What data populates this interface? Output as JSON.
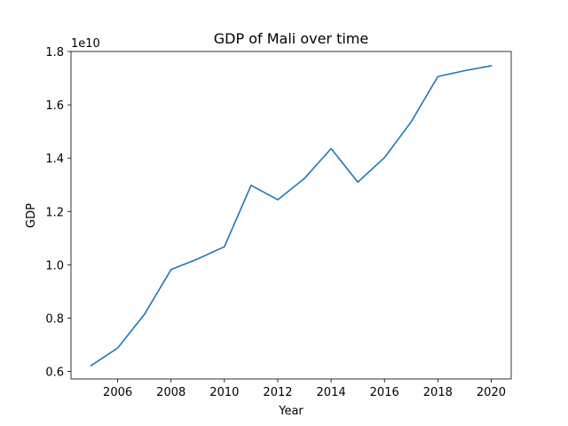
{
  "chart_data": {
    "type": "line",
    "title": "GDP of Mali over time",
    "xlabel": "Year",
    "ylabel": "GDP",
    "y_offset_label": "1e10",
    "xlim": [
      2004.25,
      2020.75
    ],
    "ylim": [
      5720000000.0,
      18000000000.0
    ],
    "x_ticks": [
      2006,
      2008,
      2010,
      2012,
      2014,
      2016,
      2018,
      2020
    ],
    "x_tick_labels": [
      "2006",
      "2008",
      "2010",
      "2012",
      "2014",
      "2016",
      "2018",
      "2020"
    ],
    "y_ticks": [
      6000000000.0,
      8000000000.0,
      10000000000.0,
      12000000000.0,
      14000000000.0,
      16000000000.0,
      18000000000.0
    ],
    "y_tick_labels": [
      "0.6",
      "0.8",
      "1.0",
      "1.2",
      "1.4",
      "1.6",
      "1.8"
    ],
    "grid": false,
    "line_color": "#1f77b4",
    "series": [
      {
        "x": [
          2005,
          2006,
          2007,
          2008,
          2009,
          2010,
          2011,
          2012,
          2013,
          2014,
          2015,
          2016,
          2017,
          2018,
          2019,
          2020
        ],
        "values": [
          6220000000.0,
          6880000000.0,
          8140000000.0,
          9820000000.0,
          10220000000.0,
          10680000000.0,
          12980000000.0,
          12440000000.0,
          13240000000.0,
          14360000000.0,
          13100000000.0,
          14020000000.0,
          15360000000.0,
          17060000000.0,
          17280000000.0,
          17460000000.0
        ]
      }
    ]
  }
}
